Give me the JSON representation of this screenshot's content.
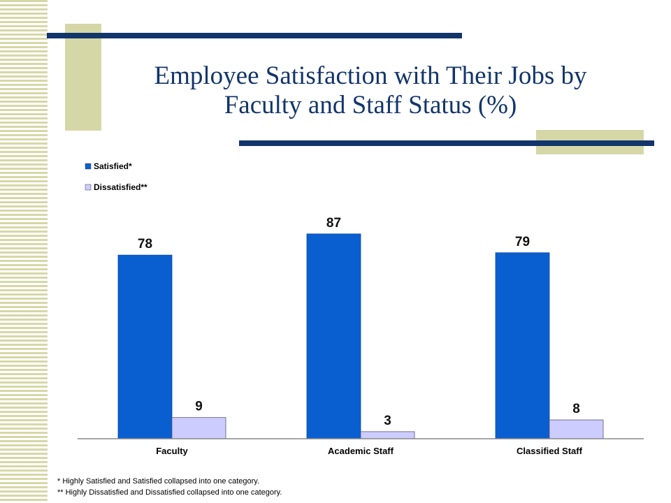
{
  "title_lines": [
    "Employee Satisfaction with Their Jobs by",
    "Faculty and Staff Status (%)"
  ],
  "colors": {
    "satisfied": "#0a5fd0",
    "dissatisfied": "#ccccff",
    "title": "#12356b",
    "accent": "#d6d7a7"
  },
  "chart_data": {
    "type": "bar",
    "categories": [
      "Faculty",
      "Academic Staff",
      "Classified Staff"
    ],
    "series": [
      {
        "name": "Satisfied*",
        "values": [
          78,
          87,
          79
        ]
      },
      {
        "name": "Dissatisfied**",
        "values": [
          9,
          3,
          8
        ]
      }
    ],
    "legend_position": "top-left",
    "grid": false,
    "data_labels": true
  },
  "footnotes": [
    "* Highly Satisfied and Satisfied collapsed into one category.",
    "** Highly Dissatisfied and Dissatisfied collapsed into one category."
  ]
}
